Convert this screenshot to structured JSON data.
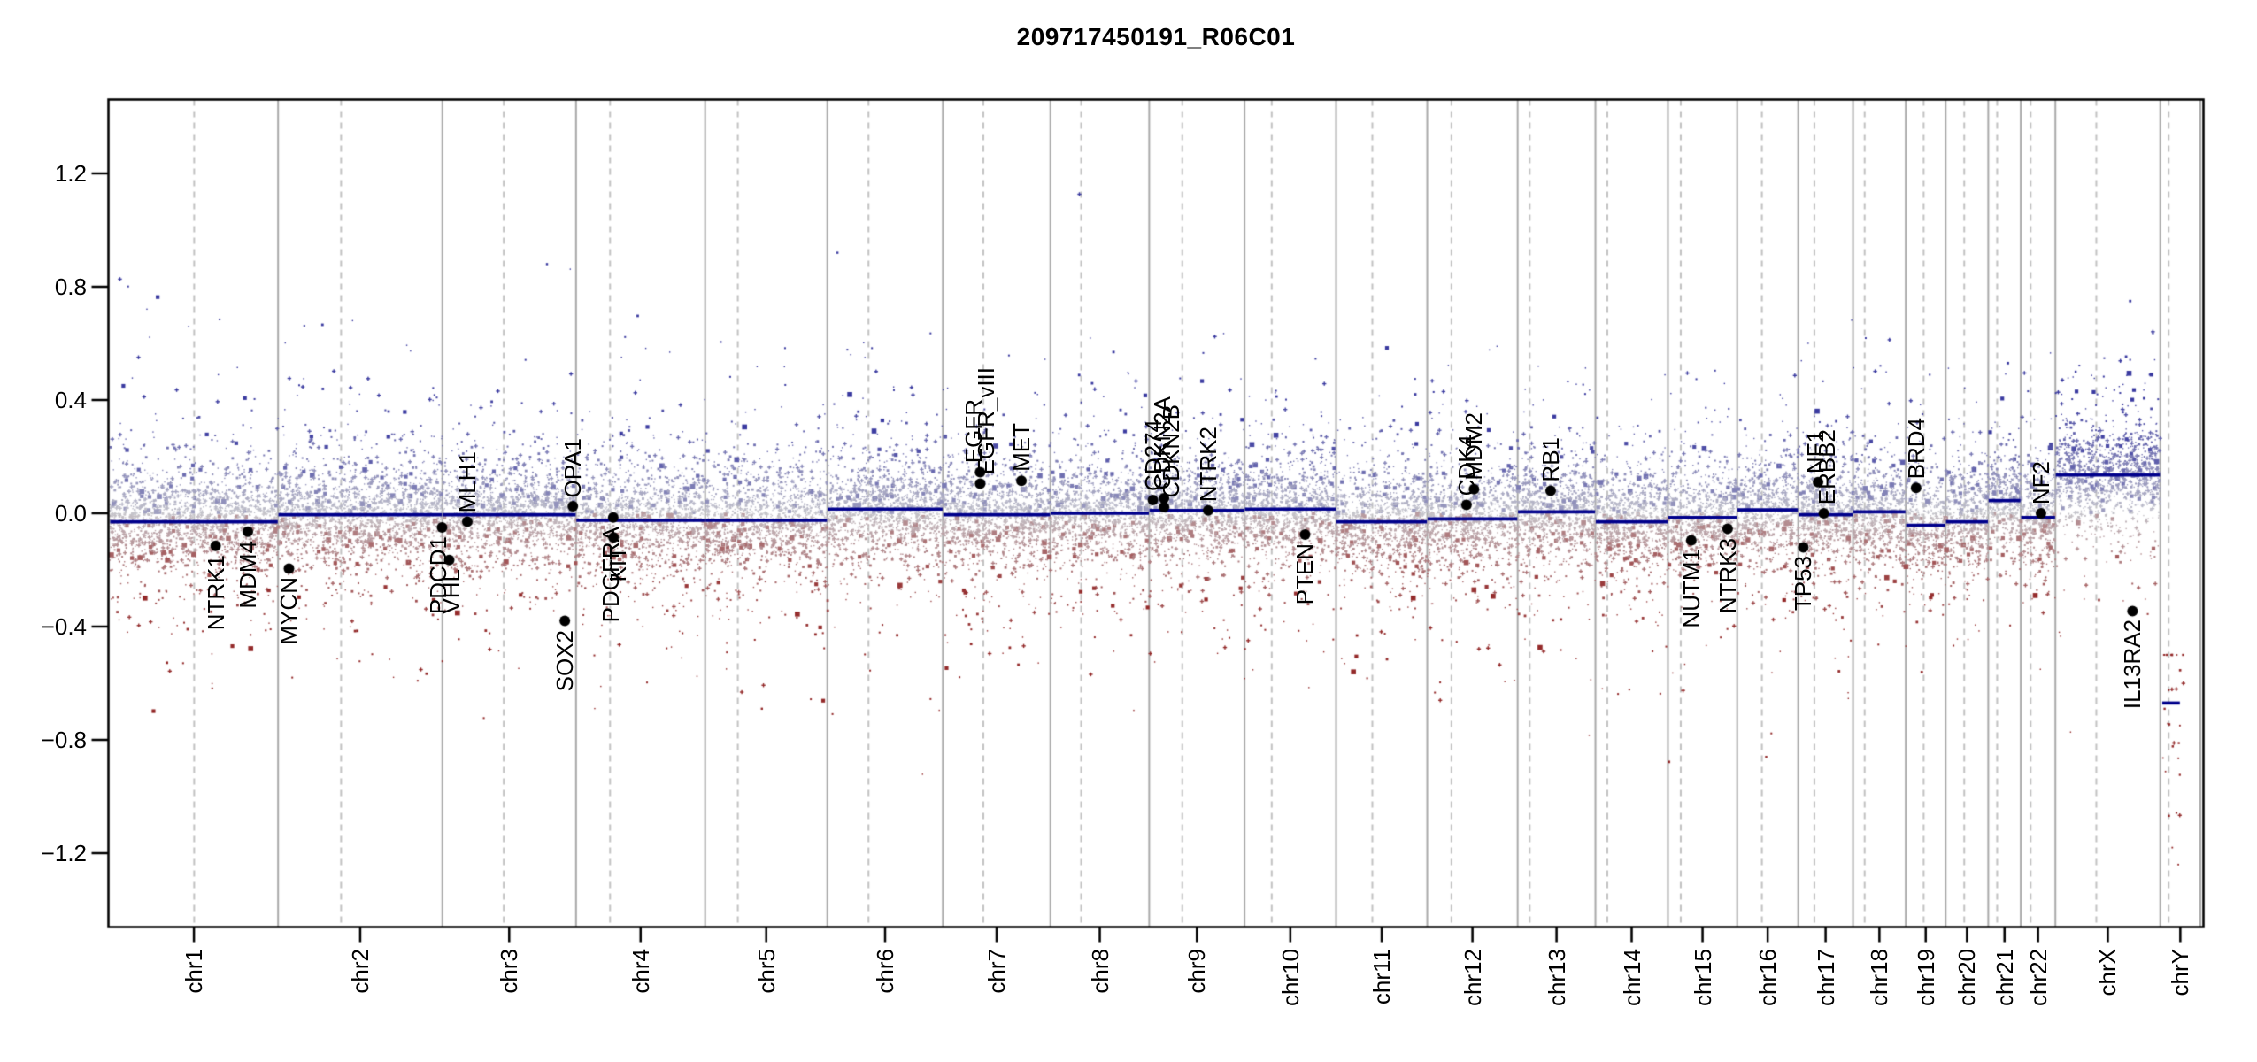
{
  "title": "209717450191_R06C01",
  "chart_data": {
    "type": "scatter",
    "subtype": "copy-number-log-ratio-genome-plot",
    "title": "209717450191_R06C01",
    "xlabel": "",
    "ylabel": "",
    "ylim": [
      -1.46,
      1.46
    ],
    "grid": false,
    "y_ticks": [
      {
        "value": 1.2,
        "label": "1.2"
      },
      {
        "value": 0.8,
        "label": "0.8"
      },
      {
        "value": 0.4,
        "label": "0.4"
      },
      {
        "value": 0.0,
        "label": "0.0"
      },
      {
        "value": -0.4,
        "label": "−0.4"
      },
      {
        "value": -0.8,
        "label": "−0.8"
      },
      {
        "value": -1.2,
        "label": "−1.2"
      }
    ],
    "chromosomes": [
      {
        "name": "chr1",
        "length_mb": 249.25,
        "centromere_mb": 125.0,
        "segment_value": -0.03
      },
      {
        "name": "chr2",
        "length_mb": 243.2,
        "centromere_mb": 93.3,
        "segment_value": -0.005
      },
      {
        "name": "chr3",
        "length_mb": 198.02,
        "centromere_mb": 91.0,
        "segment_value": -0.005
      },
      {
        "name": "chr4",
        "length_mb": 191.15,
        "centromere_mb": 50.4,
        "segment_value": -0.025
      },
      {
        "name": "chr5",
        "length_mb": 180.92,
        "centromere_mb": 48.4,
        "segment_value": -0.025
      },
      {
        "name": "chr6",
        "length_mb": 171.12,
        "centromere_mb": 61.0,
        "segment_value": 0.015
      },
      {
        "name": "chr7",
        "length_mb": 159.14,
        "centromere_mb": 59.9,
        "segment_value": -0.005
      },
      {
        "name": "chr8",
        "length_mb": 146.36,
        "centromere_mb": 45.6,
        "segment_value": 0.0
      },
      {
        "name": "chr9",
        "length_mb": 141.21,
        "centromere_mb": 49.0,
        "segment_value": 0.01
      },
      {
        "name": "chr10",
        "length_mb": 135.53,
        "centromere_mb": 40.2,
        "segment_value": 0.015
      },
      {
        "name": "chr11",
        "length_mb": 135.01,
        "centromere_mb": 53.7,
        "segment_value": -0.03
      },
      {
        "name": "chr12",
        "length_mb": 133.85,
        "centromere_mb": 35.8,
        "segment_value": -0.02
      },
      {
        "name": "chr13",
        "length_mb": 115.17,
        "centromere_mb": 17.9,
        "segment_value": 0.005
      },
      {
        "name": "chr14",
        "length_mb": 107.35,
        "centromere_mb": 17.6,
        "segment_value": -0.03
      },
      {
        "name": "chr15",
        "length_mb": 102.53,
        "centromere_mb": 19.0,
        "segment_value": -0.015
      },
      {
        "name": "chr16",
        "length_mb": 90.35,
        "centromere_mb": 36.6,
        "segment_value": 0.012
      },
      {
        "name": "chr17",
        "length_mb": 81.2,
        "centromere_mb": 24.0,
        "segment_value": -0.005
      },
      {
        "name": "chr18",
        "length_mb": 78.08,
        "centromere_mb": 17.2,
        "segment_value": 0.005
      },
      {
        "name": "chr19",
        "length_mb": 59.13,
        "centromere_mb": 26.5,
        "segment_value": -0.042
      },
      {
        "name": "chr20",
        "length_mb": 63.03,
        "centromere_mb": 27.5,
        "segment_value": -0.03
      },
      {
        "name": "chr21",
        "length_mb": 48.13,
        "centromere_mb": 13.2,
        "segment_value": 0.045
      },
      {
        "name": "chr22",
        "length_mb": 51.3,
        "centromere_mb": 14.7,
        "segment_value": -0.015
      },
      {
        "name": "chrX",
        "length_mb": 155.27,
        "centromere_mb": 60.6,
        "segment_value": 0.135
      },
      {
        "name": "chrY",
        "length_mb": 59.37,
        "centromere_mb": 12.5,
        "segment_value": -0.67,
        "segment_span_mb": [
          3,
          29
        ],
        "sparse": true
      }
    ],
    "genes": [
      {
        "name": "NTRK1",
        "chrom": "chr1",
        "pos_mb": 156.8,
        "value": -0.115,
        "label_side": "below",
        "label_dx": 0
      },
      {
        "name": "MDM4",
        "chrom": "chr1",
        "pos_mb": 204.5,
        "value": -0.065,
        "label_side": "below",
        "label_dx": 0
      },
      {
        "name": "MYCN",
        "chrom": "chr2",
        "pos_mb": 16.1,
        "value": -0.195,
        "label_side": "below",
        "label_dx": 0
      },
      {
        "name": "PDCD1",
        "chrom": "chr2",
        "pos_mb": 242.8,
        "value": -0.05,
        "label_side": "below",
        "label_dx": -4
      },
      {
        "name": "VHL",
        "chrom": "chr3",
        "pos_mb": 10.2,
        "value": -0.165,
        "label_side": "below",
        "label_dx": 2
      },
      {
        "name": "MLH1",
        "chrom": "chr3",
        "pos_mb": 37.0,
        "value": -0.03,
        "label_side": "above",
        "label_dx": 0
      },
      {
        "name": "SOX2",
        "chrom": "chr3",
        "pos_mb": 181.4,
        "value": -0.38,
        "label_side": "below",
        "label_dx": 0
      },
      {
        "name": "OPA1",
        "chrom": "chr3",
        "pos_mb": 193.3,
        "value": 0.025,
        "label_side": "above",
        "label_dx": 0
      },
      {
        "name": "PDGFRA",
        "chrom": "chr4",
        "pos_mb": 55.1,
        "value": -0.015,
        "label_side": "below",
        "label_dx": -3
      },
      {
        "name": "KIT",
        "chrom": "chr4",
        "pos_mb": 55.6,
        "value": -0.085,
        "label_side": "below",
        "label_dx": 5
      },
      {
        "name": "EGFR",
        "chrom": "chr7",
        "pos_mb": 55.1,
        "value": 0.145,
        "label_side": "above",
        "label_dx": -7
      },
      {
        "name": "EGFR_vIII",
        "chrom": "chr7",
        "pos_mb": 55.2,
        "value": 0.105,
        "label_side": "above",
        "label_dx": 7
      },
      {
        "name": "MET",
        "chrom": "chr7",
        "pos_mb": 116.3,
        "value": 0.115,
        "label_side": "above",
        "label_dx": 0
      },
      {
        "name": "CD274",
        "chrom": "chr9",
        "pos_mb": 5.5,
        "value": 0.047,
        "label_side": "above",
        "label_dx": 0
      },
      {
        "name": "CDKN2A",
        "chrom": "chr9",
        "pos_mb": 21.97,
        "value": 0.053,
        "label_side": "above",
        "label_dx": -2
      },
      {
        "name": "CDKN2B",
        "chrom": "chr9",
        "pos_mb": 22.01,
        "value": 0.022,
        "label_side": "above",
        "label_dx": 8
      },
      {
        "name": "NTRK2",
        "chrom": "chr9",
        "pos_mb": 87.3,
        "value": 0.01,
        "label_side": "above",
        "label_dx": 0
      },
      {
        "name": "PTEN",
        "chrom": "chr10",
        "pos_mb": 89.6,
        "value": -0.075,
        "label_side": "below",
        "label_dx": 0
      },
      {
        "name": "CDK4",
        "chrom": "chr12",
        "pos_mb": 58.1,
        "value": 0.03,
        "label_side": "above",
        "label_dx": 0
      },
      {
        "name": "MDM2",
        "chrom": "chr12",
        "pos_mb": 69.2,
        "value": 0.085,
        "label_side": "above",
        "label_dx": 0
      },
      {
        "name": "RB1",
        "chrom": "chr13",
        "pos_mb": 48.9,
        "value": 0.08,
        "label_side": "above",
        "label_dx": 0
      },
      {
        "name": "NUTM1",
        "chrom": "chr15",
        "pos_mb": 34.6,
        "value": -0.095,
        "label_side": "below",
        "label_dx": 0
      },
      {
        "name": "NTRK3",
        "chrom": "chr15",
        "pos_mb": 88.4,
        "value": -0.055,
        "label_side": "below",
        "label_dx": 0
      },
      {
        "name": "TP53",
        "chrom": "chr17",
        "pos_mb": 7.6,
        "value": -0.12,
        "label_side": "below",
        "label_dx": 0
      },
      {
        "name": "NF1",
        "chrom": "chr17",
        "pos_mb": 29.4,
        "value": 0.11,
        "label_side": "above",
        "label_dx": -3
      },
      {
        "name": "ERBB2",
        "chrom": "chr17",
        "pos_mb": 37.9,
        "value": 0.0,
        "label_side": "above",
        "label_dx": 3
      },
      {
        "name": "BRD4",
        "chrom": "chr19",
        "pos_mb": 15.3,
        "value": 0.09,
        "label_side": "above",
        "label_dx": 0
      },
      {
        "name": "NF2",
        "chrom": "chr22",
        "pos_mb": 30.0,
        "value": 0.0,
        "label_side": "above",
        "label_dx": 0
      },
      {
        "name": "IL13RA2",
        "chrom": "chrX",
        "pos_mb": 114.2,
        "value": -0.345,
        "label_side": "below",
        "label_dx": 0
      }
    ],
    "outlier_points": [
      {
        "chrom": "chr3",
        "pos_mb": 155,
        "value": 0.88
      },
      {
        "chrom": "chr6",
        "pos_mb": 15,
        "value": 0.92
      },
      {
        "chrom": "chr5",
        "pos_mb": 84,
        "value": -0.69
      },
      {
        "chrom": "chr16",
        "pos_mb": 43,
        "value": -0.86
      },
      {
        "chrom": "chrX",
        "pos_mb": 30,
        "value": 0.5
      }
    ],
    "colors": {
      "gain_point": "#3a3aa0",
      "loss_point": "#942a2a",
      "neutral_point": "#c6c6cc",
      "segment_line": "#00008B",
      "gene_dot": "#000000",
      "chromosome_boundary": "#aaaaaa",
      "centromere_dash": "#c2c2c2",
      "axis": "#000000",
      "background": "#ffffff"
    },
    "legend": null
  }
}
